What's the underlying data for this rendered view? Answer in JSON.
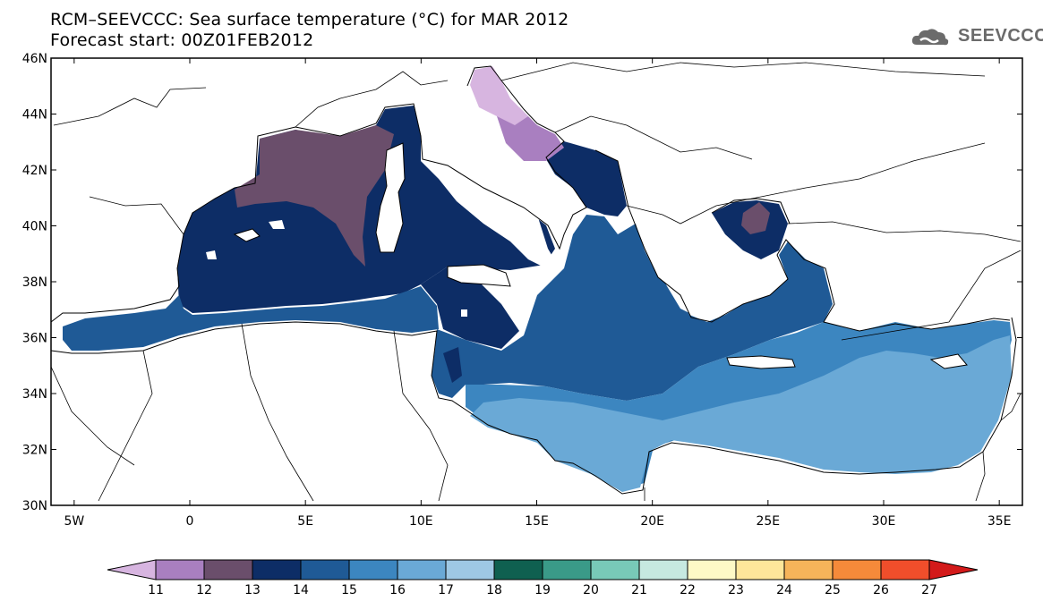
{
  "title": {
    "line1": "RCM–SEEVCCC: Sea surface temperature (°C) for MAR 2012",
    "line2": "Forecast start: 00Z01FEB2012"
  },
  "logo": {
    "text": "SEEVCCC",
    "icon": "cloud-logo-icon"
  },
  "map": {
    "lat_range": [
      30,
      46
    ],
    "lon_range": [
      -6,
      36
    ],
    "y_ticks": [
      "30N",
      "32N",
      "34N",
      "36N",
      "38N",
      "40N",
      "42N",
      "44N",
      "46N"
    ],
    "x_ticks": [
      "5W",
      "0",
      "5E",
      "10E",
      "15E",
      "20E",
      "25E",
      "30E",
      "35E"
    ]
  },
  "colorbar": {
    "labels": [
      "11",
      "12",
      "13",
      "14",
      "15",
      "16",
      "17",
      "18",
      "19",
      "20",
      "21",
      "22",
      "23",
      "24",
      "25",
      "26",
      "27"
    ],
    "colors": [
      "#d7b5e0",
      "#a97fc0",
      "#6a4e6b",
      "#0d2d66",
      "#1f5a96",
      "#3c86c0",
      "#6aa9d6",
      "#9ec8e4",
      "#0f6050",
      "#3a9a88",
      "#78c9b8",
      "#c6e9e0",
      "#fdf9c6",
      "#fee69a",
      "#f6b45a",
      "#f58a3a",
      "#f04e2b",
      "#d31a1a"
    ]
  }
}
